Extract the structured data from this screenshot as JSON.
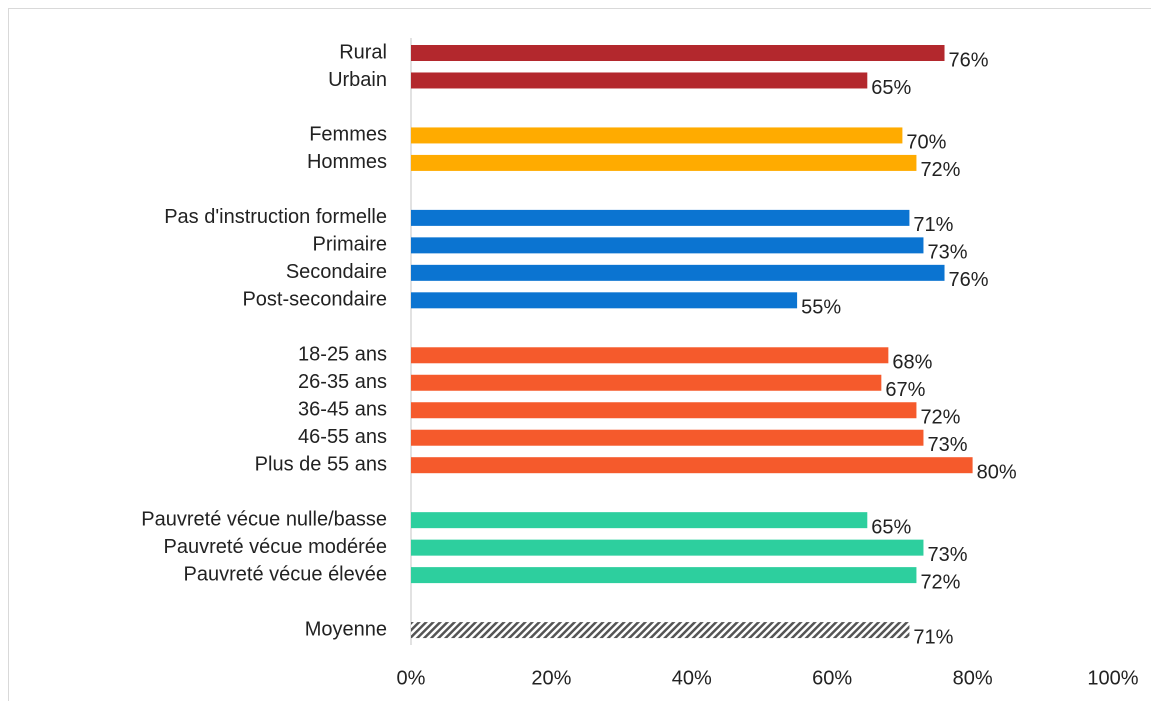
{
  "chart_data": {
    "type": "barh",
    "categories": [
      "Rural",
      "Urbain",
      null,
      "Femmes",
      "Hommes",
      null,
      "Pas d'instruction formelle",
      "Primaire",
      "Secondaire",
      "Post-secondaire",
      null,
      "18-25 ans",
      "26-35 ans",
      "36-45 ans",
      "46-55 ans",
      "Plus de 55 ans",
      null,
      "Pauvreté vécue nulle/basse",
      "Pauvreté vécue modérée",
      "Pauvreté vécue élevée",
      null,
      "Moyenne"
    ],
    "values": [
      76,
      65,
      null,
      70,
      72,
      null,
      71,
      73,
      76,
      55,
      null,
      68,
      67,
      72,
      73,
      80,
      null,
      65,
      73,
      72,
      null,
      71
    ],
    "value_labels": [
      "76%",
      "65%",
      null,
      "70%",
      "72%",
      null,
      "71%",
      "73%",
      "76%",
      "55%",
      null,
      "68%",
      "67%",
      "72%",
      "73%",
      "80%",
      null,
      "65%",
      "73%",
      "72%",
      null,
      "71%"
    ],
    "colors": [
      "#b3282d",
      "#b3282d",
      null,
      "#ffab00",
      "#ffab00",
      null,
      "#0b74d1",
      "#0b74d1",
      "#0b74d1",
      "#0b74d1",
      null,
      "#f55a2c",
      "#f55a2c",
      "#f55a2c",
      "#f55a2c",
      "#f55a2c",
      null,
      "#2dcf9e",
      "#2dcf9e",
      "#2dcf9e",
      null,
      "#555555"
    ],
    "patterns": [
      "solid",
      "solid",
      null,
      "solid",
      "solid",
      null,
      "solid",
      "solid",
      "solid",
      "solid",
      null,
      "solid",
      "solid",
      "solid",
      "solid",
      "solid",
      null,
      "solid",
      "solid",
      "solid",
      null,
      "hatch"
    ],
    "xlim": [
      0,
      100
    ],
    "xticks": [
      {
        "value": 0,
        "label": "0%"
      },
      {
        "value": 20,
        "label": "20%"
      },
      {
        "value": 40,
        "label": "40%"
      },
      {
        "value": 60,
        "label": "60%"
      },
      {
        "value": 80,
        "label": "80%"
      },
      {
        "value": 100,
        "label": "100%"
      }
    ]
  }
}
